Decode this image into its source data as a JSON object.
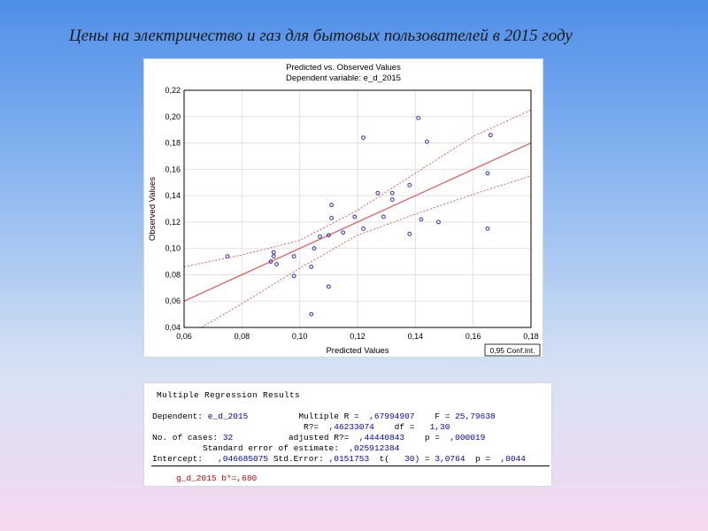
{
  "slide": {
    "title": "Цены на электричество и газ для бытовых пользователей в 2015 году"
  },
  "chart_data": {
    "type": "scatter",
    "title": "Predicted vs. Observed Values",
    "subtitle": "Dependent variable: e_d_2015",
    "xlabel": "Predicted Values",
    "ylabel": "Observed Values",
    "xlim": [
      0.06,
      0.18
    ],
    "ylim": [
      0.04,
      0.22
    ],
    "xticks": [
      "0,06",
      "0,08",
      "0,10",
      "0,12",
      "0,14",
      "0,16",
      "0,18"
    ],
    "yticks": [
      "0,04",
      "0,06",
      "0,08",
      "0,10",
      "0,12",
      "0,14",
      "0,16",
      "0,18",
      "0,20",
      "0,22"
    ],
    "grid": true,
    "legend_text": "0,95 Conf.Int.",
    "legend_position": "bottom-right",
    "points": [
      [
        0.075,
        0.094
      ],
      [
        0.09,
        0.09
      ],
      [
        0.091,
        0.097
      ],
      [
        0.091,
        0.094
      ],
      [
        0.092,
        0.088
      ],
      [
        0.098,
        0.094
      ],
      [
        0.098,
        0.079
      ],
      [
        0.104,
        0.086
      ],
      [
        0.104,
        0.05
      ],
      [
        0.105,
        0.1
      ],
      [
        0.107,
        0.109
      ],
      [
        0.11,
        0.11
      ],
      [
        0.11,
        0.071
      ],
      [
        0.111,
        0.123
      ],
      [
        0.111,
        0.133
      ],
      [
        0.115,
        0.112
      ],
      [
        0.119,
        0.124
      ],
      [
        0.122,
        0.184
      ],
      [
        0.122,
        0.115
      ],
      [
        0.127,
        0.142
      ],
      [
        0.129,
        0.124
      ],
      [
        0.132,
        0.142
      ],
      [
        0.132,
        0.137
      ],
      [
        0.138,
        0.111
      ],
      [
        0.138,
        0.148
      ],
      [
        0.141,
        0.199
      ],
      [
        0.142,
        0.122
      ],
      [
        0.144,
        0.181
      ],
      [
        0.148,
        0.12
      ],
      [
        0.165,
        0.157
      ],
      [
        0.165,
        0.115
      ],
      [
        0.166,
        0.186
      ]
    ],
    "fit_line": [
      [
        0.06,
        0.06
      ],
      [
        0.18,
        0.18
      ]
    ],
    "conf_upper": [
      [
        0.06,
        0.086
      ],
      [
        0.08,
        0.095
      ],
      [
        0.1,
        0.106
      ],
      [
        0.12,
        0.129
      ],
      [
        0.14,
        0.157
      ],
      [
        0.16,
        0.185
      ],
      [
        0.18,
        0.205
      ]
    ],
    "conf_lower": [
      [
        0.066,
        0.04
      ],
      [
        0.08,
        0.058
      ],
      [
        0.1,
        0.085
      ],
      [
        0.12,
        0.11
      ],
      [
        0.14,
        0.126
      ],
      [
        0.16,
        0.141
      ],
      [
        0.18,
        0.155
      ]
    ],
    "colors": {
      "points": "#2b2bd0",
      "fit": "#e06060",
      "conf": "#e06060",
      "grid": "#e2e2e2"
    }
  },
  "results": {
    "title": "Multiple Regression Results",
    "dependent_label": "Dependent:",
    "dependent_value": "e_d_2015",
    "multiple_r_label": "Multiple R =",
    "multiple_r_value": ",67994907",
    "f_label": "F =",
    "f_value": "25,79638",
    "r2_label": "R?=",
    "r2_value": ",46233074",
    "df_label": "df =",
    "df_value": "1,30",
    "cases_label": "No. of cases:",
    "cases_value": "32",
    "adj_r2_label": "adjusted R?=",
    "adj_r2_value": ",44440843",
    "p_label": "p =",
    "p_value": ",000019",
    "se_label": "Standard error of estimate:",
    "se_value": ",025912384",
    "intercept_label": "Intercept:",
    "intercept_value": ",046685075",
    "std_err_label": "Std.Error:",
    "std_err_value": ",0151753",
    "t_label": "t(",
    "t_df": "30)",
    "t_eq": "=",
    "t_value": "3,0764",
    "p2_label": "p =",
    "p2_value": ",0044",
    "coef_line": "g_d_2015 b*=,680"
  }
}
